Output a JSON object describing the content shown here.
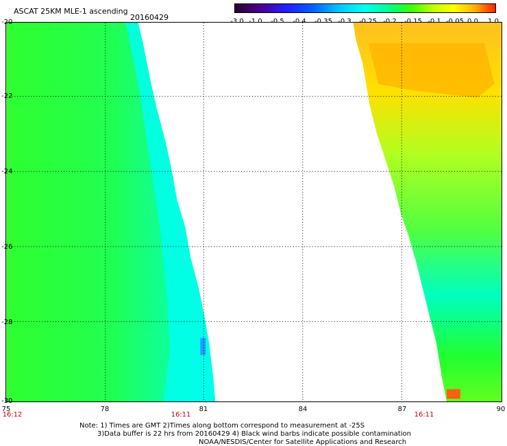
{
  "title": "ASCAT 25KM MLE-1 ascending",
  "date": "20160429",
  "colorbar_labels": [
    "-3.0",
    "-1.0",
    "-0.5",
    "-0.4",
    "-0.35",
    "-0.3",
    "-0.25",
    "-0.2",
    "-0.15",
    "-0.1",
    "-0.05",
    "0.0",
    "1.0"
  ],
  "y_labels": [
    "-20",
    "-22",
    "-24",
    "-26",
    "-28",
    "-30"
  ],
  "x_labels": [
    "75",
    "78",
    "81",
    "84",
    "87",
    "90"
  ],
  "times": [
    "16:12",
    "16:11",
    "16:11"
  ],
  "notes": [
    "Note: 1) Times are GMT 2)Times along bottom correspond to measurement at -25S",
    "3)Data buffer is 22 hrs from 20160429 4) Black wind barbs indicate possible contamination",
    "NOAA/NESDIS/Center for Satellite Applications and Research"
  ]
}
